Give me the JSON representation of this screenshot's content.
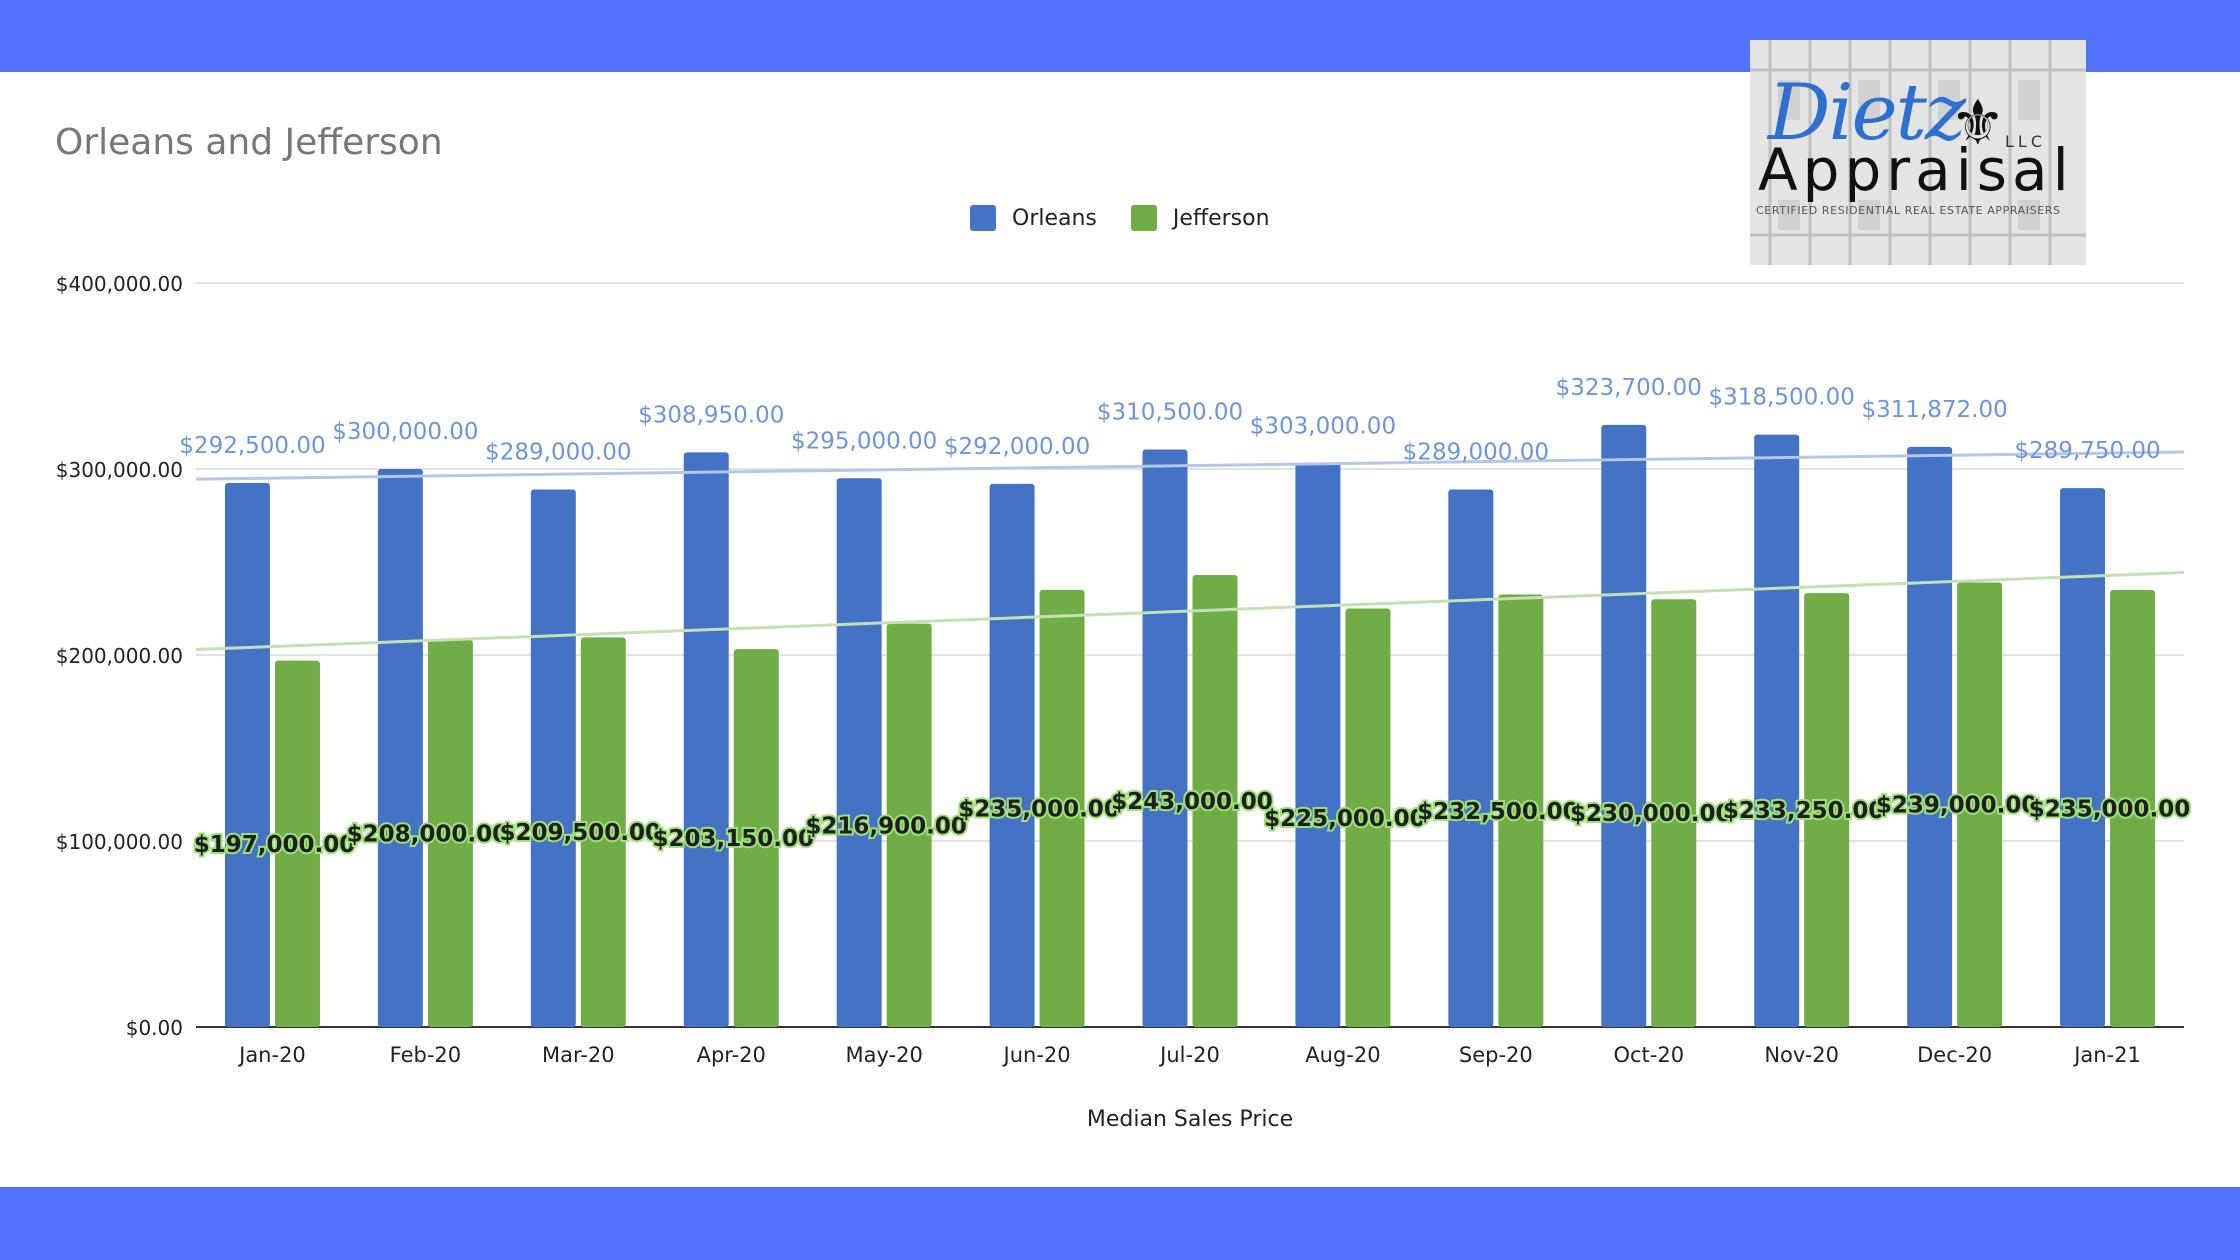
{
  "chart_data": {
    "type": "bar",
    "title": "Orleans and Jefferson",
    "xlabel": "Median Sales Price",
    "ylabel": "",
    "ylim": [
      0,
      400000
    ],
    "yticks": [
      "$0.00",
      "$100,000.00",
      "$200,000.00",
      "$300,000.00",
      "$400,000.00"
    ],
    "ytick_values": [
      0,
      100000,
      200000,
      300000,
      400000
    ],
    "categories": [
      "Jan-20",
      "Feb-20",
      "Mar-20",
      "Apr-20",
      "May-20",
      "Jun-20",
      "Jul-20",
      "Aug-20",
      "Sep-20",
      "Oct-20",
      "Nov-20",
      "Dec-20",
      "Jan-21"
    ],
    "series": [
      {
        "name": "Orleans",
        "color": "#4472c4",
        "label_color": "#6d95db",
        "values": [
          292500,
          300000,
          289000,
          308950,
          295000,
          292000,
          310500,
          303000,
          289000,
          323700,
          318500,
          311872,
          289750
        ],
        "labels": [
          "$292,500.00",
          "$300,000.00",
          "$289,000.00",
          "$308,950.00",
          "$295,000.00",
          "$292,000.00",
          "$310,500.00",
          "$303,000.00",
          "$289,000.00",
          "$323,700.00",
          "$318,500.00",
          "$311,872.00",
          "$289,750.00"
        ],
        "trendline": true,
        "trend_color": "#b4c7e7"
      },
      {
        "name": "Jefferson",
        "color": "#70ad47",
        "label_color": "#1f1f1f",
        "values": [
          197000,
          208000,
          209500,
          203150,
          216900,
          235000,
          243000,
          225000,
          232500,
          230000,
          233250,
          239000,
          235000
        ],
        "labels": [
          "$197,000.00",
          "$208,000.00",
          "$209,500.00",
          "$203,150.00",
          "$216,900.00",
          "$235,000.00",
          "$243,000.00",
          "$225,000.00",
          "$232,500.00",
          "$230,000.00",
          "$233,250.00",
          "$239,000.00",
          "$235,000.00"
        ],
        "trendline": true,
        "trend_color": "#c5e0b4"
      }
    ],
    "legend": "top-center",
    "grid": true
  },
  "logo": {
    "script": "Dietz",
    "llc": "LLC",
    "name": "Appraisal",
    "tagline": "CERTIFIED RESIDENTIAL REAL ESTATE APPRAISERS"
  },
  "colors": {
    "band": "#5171ff",
    "title": "#777777"
  }
}
